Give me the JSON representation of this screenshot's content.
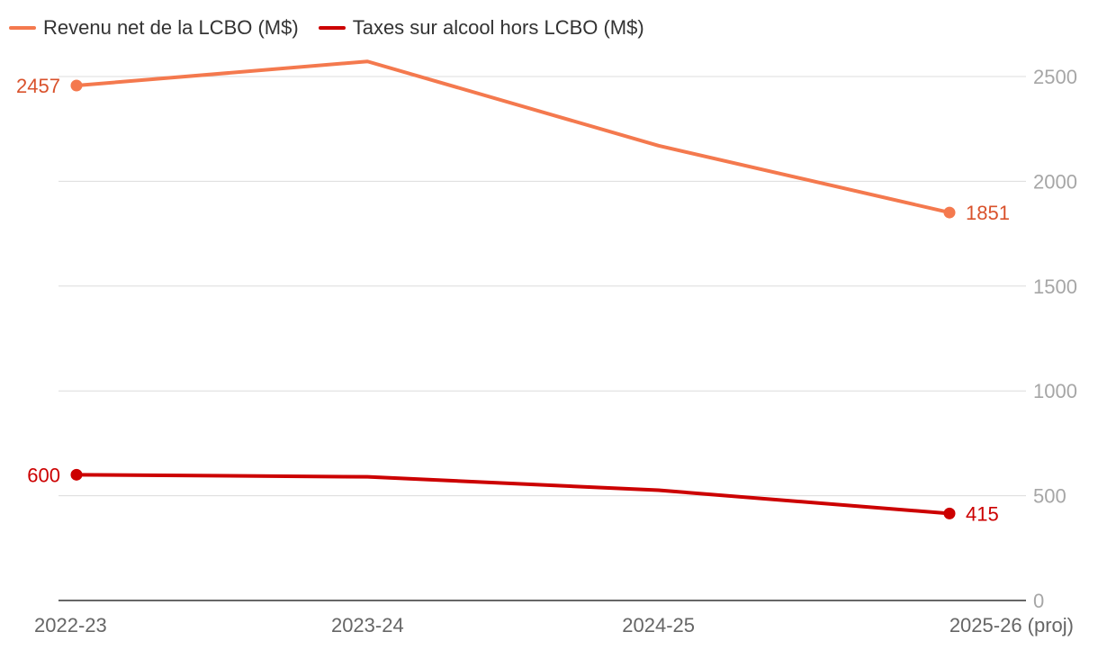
{
  "chart_data": {
    "type": "line",
    "title": "",
    "xlabel": "",
    "ylabel": "",
    "categories": [
      "2022-23",
      "2023-24",
      "2024-25",
      "2025-26 (proj)"
    ],
    "ylim": [
      0,
      2500
    ],
    "yticks": [
      0,
      500,
      1000,
      1500,
      2000,
      2500
    ],
    "grid": true,
    "legend_position": "top-left",
    "series": [
      {
        "name": "Revenu net de la LCBO (M$)",
        "color": "#f4794e",
        "label_color": "#d9522c",
        "values": [
          2457,
          2572,
          2170,
          1851
        ],
        "labels": [
          {
            "index": 0,
            "text": "2457",
            "side": "left"
          },
          {
            "index": 3,
            "text": "1851",
            "side": "right"
          }
        ]
      },
      {
        "name": "Taxes sur alcool hors LCBO (M$)",
        "color": "#cc0000",
        "label_color": "#cc0000",
        "values": [
          600,
          590,
          526,
          415
        ],
        "labels": [
          {
            "index": 0,
            "text": "600",
            "side": "left"
          },
          {
            "index": 3,
            "text": "415",
            "side": "right"
          }
        ]
      }
    ]
  }
}
